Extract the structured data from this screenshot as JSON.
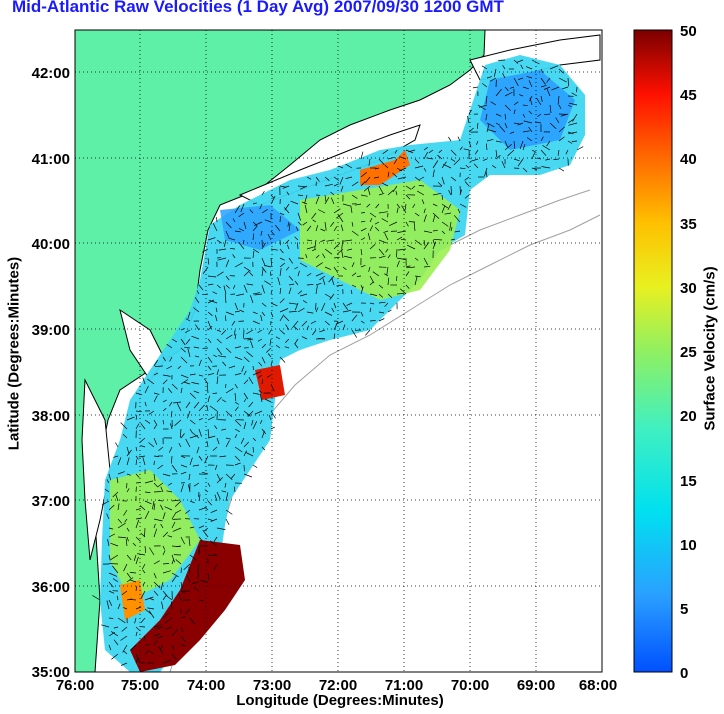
{
  "title": "Mid-Atlantic Raw Velocities (1 Day Avg) 2007/09/30 1200 GMT",
  "axes": {
    "xlabel": "Longitude (Degrees:Minutes)",
    "ylabel": "Latitude (Degrees:Minutes)",
    "x_ticks": [
      "76:00",
      "75:00",
      "74:00",
      "73:00",
      "72:00",
      "71:00",
      "70:00",
      "69:00",
      "68:00"
    ],
    "y_ticks": [
      "42:00",
      "41:00",
      "40:00",
      "39:00",
      "38:00",
      "37:00",
      "36:00",
      "35:00"
    ],
    "x_range_deg_west": [
      76,
      68
    ],
    "y_range_deg_north": [
      35,
      42.5
    ],
    "grid": true
  },
  "colorbar": {
    "label": "Surface Velocity (cm/s)",
    "ticks": [
      "50",
      "45",
      "40",
      "35",
      "30",
      "25",
      "20",
      "15",
      "10",
      "5",
      "0"
    ],
    "min": 0,
    "max": 50,
    "colormap": "jet"
  },
  "colors": {
    "land": "#5ff0a8",
    "coastline": "#000000",
    "bathymetry": "#a0a0a0",
    "title": "#1a1aff"
  }
}
